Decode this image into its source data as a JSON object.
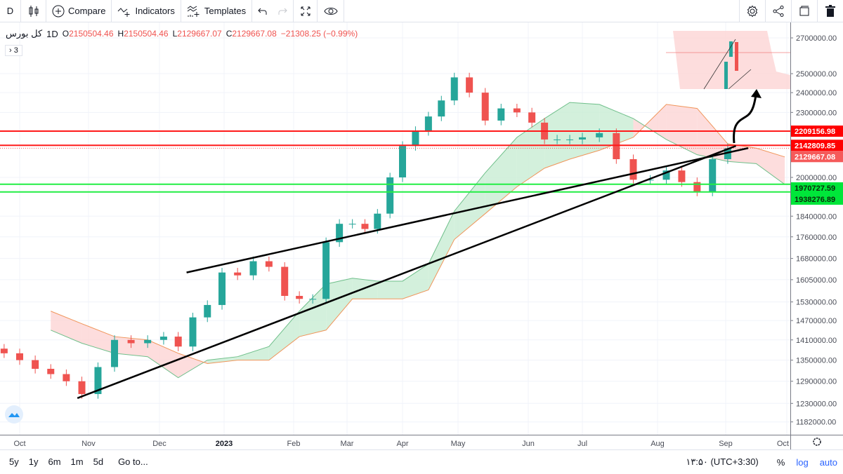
{
  "toolbar": {
    "interval": "D",
    "compare": "Compare",
    "indicators": "Indicators",
    "templates": "Templates",
    "icons": [
      "candles-icon",
      "plus-circle-icon",
      "indicators-icon",
      "templates-icon",
      "undo-icon",
      "redo-icon",
      "fullscreen-icon",
      "eye-icon",
      "gear-icon",
      "share-icon",
      "snapshot-icon",
      "trash-icon"
    ]
  },
  "legend": {
    "symbol": "کل بورس",
    "interval": "1D",
    "o_label": "O",
    "o": "2150504.46",
    "h_label": "H",
    "h": "2150504.46",
    "l_label": "L",
    "l": "2129667.07",
    "c_label": "C",
    "c": "2129667.08",
    "change": "−21308.25 (−0.99%)",
    "collapsed_count": "3"
  },
  "bottom": {
    "ranges": [
      "5y",
      "1y",
      "6m",
      "1m",
      "5d"
    ],
    "goto": "Go to...",
    "time": "۱۳:۵۰ (UTC+3:30)",
    "percent": "%",
    "log": "log",
    "auto": "auto"
  },
  "chart_data": {
    "type": "candlestick",
    "scale": "log",
    "ylim": [
      1160000,
      2780000
    ],
    "grid": true,
    "colors": {
      "up": "#26a69a",
      "down": "#ef5350",
      "resistance": "#ff1a1a",
      "support": "#22ee44",
      "span_a": "#6fbf8a",
      "span_b": "#f0955a",
      "cloud_bull": "#c8ecd3",
      "cloud_bear": "#fcd4d4"
    },
    "x_ticks": [
      "Oct",
      "Nov",
      "Dec",
      "2023",
      "Feb",
      "Mar",
      "Apr",
      "May",
      "Jun",
      "Jul",
      "Aug",
      "Sep",
      "Oct"
    ],
    "y_ticks": [
      2700000,
      2500000,
      2400000,
      2300000,
      2000000,
      1840000,
      1760000,
      1680000,
      1605000,
      1530000,
      1470000,
      1410000,
      1350000,
      1290000,
      1230000,
      1182000
    ],
    "candles": {
      "dates": [
        "2022-09-24",
        "2022-10-01",
        "2022-10-08",
        "2022-10-15",
        "2022-10-22",
        "2022-10-29",
        "2022-11-05",
        "2022-11-12",
        "2022-11-19",
        "2022-11-26",
        "2022-12-03",
        "2022-12-10",
        "2022-12-17",
        "2022-12-24",
        "2022-12-31",
        "2023-01-07",
        "2023-01-14",
        "2023-01-21",
        "2023-01-28",
        "2023-02-04",
        "2023-02-11",
        "2023-02-18",
        "2023-02-25",
        "2023-03-04",
        "2023-03-11",
        "2023-03-18",
        "2023-03-25",
        "2023-04-01",
        "2023-04-08",
        "2023-04-15",
        "2023-04-22",
        "2023-04-29",
        "2023-05-06",
        "2023-05-13",
        "2023-05-20",
        "2023-05-27",
        "2023-06-03",
        "2023-06-10",
        "2023-06-17",
        "2023-06-24",
        "2023-07-01",
        "2023-07-08",
        "2023-07-15",
        "2023-07-22",
        "2023-07-29",
        "2023-08-05",
        "2023-08-12",
        "2023-08-19",
        "2023-08-26",
        "2023-09-02"
      ],
      "close": [
        1370000,
        1350000,
        1325000,
        1310000,
        1290000,
        1255000,
        1330000,
        1410000,
        1400000,
        1410000,
        1420000,
        1390000,
        1480000,
        1520000,
        1630000,
        1620000,
        1670000,
        1650000,
        1550000,
        1540000,
        1540000,
        1740000,
        1810000,
        1810000,
        1790000,
        1850000,
        2000000,
        2140000,
        2210000,
        2280000,
        2360000,
        2480000,
        2400000,
        2260000,
        2320000,
        2300000,
        2250000,
        2170000,
        2170000,
        2170000,
        2180000,
        2200000,
        2080000,
        1990000,
        1990000,
        2030000,
        1980000,
        1940000,
        2080000,
        2129667
      ]
    },
    "ichimoku": {
      "dates": [
        "2022-10-15",
        "2022-10-29",
        "2022-11-12",
        "2022-11-26",
        "2022-12-10",
        "2022-12-24",
        "2023-01-07",
        "2023-01-21",
        "2023-02-04",
        "2023-02-18",
        "2023-03-04",
        "2023-03-18",
        "2023-04-01",
        "2023-04-15",
        "2023-04-29",
        "2023-05-13",
        "2023-05-27",
        "2023-06-10",
        "2023-06-24",
        "2023-07-08",
        "2023-07-22",
        "2023-08-05",
        "2023-08-19",
        "2023-09-02",
        "2023-09-16",
        "2023-09-30"
      ],
      "span_a": [
        1440000,
        1400000,
        1370000,
        1360000,
        1300000,
        1350000,
        1360000,
        1390000,
        1500000,
        1590000,
        1610000,
        1600000,
        1600000,
        1660000,
        1860000,
        2020000,
        2180000,
        2270000,
        2350000,
        2340000,
        2270000,
        2170000,
        2100000,
        2070000,
        2060000,
        1970000
      ],
      "span_b": [
        1500000,
        1460000,
        1420000,
        1410000,
        1370000,
        1340000,
        1350000,
        1350000,
        1420000,
        1440000,
        1540000,
        1540000,
        1540000,
        1570000,
        1750000,
        1850000,
        1960000,
        2040000,
        2080000,
        2120000,
        2180000,
        2340000,
        2320000,
        2150000,
        2130000,
        2090000
      ]
    },
    "levels": [
      {
        "price": 2209156.98,
        "label": "2209156.98",
        "kind": "resistance"
      },
      {
        "price": 2142809.85,
        "label": "2142809.85",
        "kind": "resistance"
      },
      {
        "price": 2129667.08,
        "label": "2129667.08",
        "kind": "last"
      },
      {
        "price": 1970727.59,
        "label": "1970727.59",
        "kind": "support"
      },
      {
        "price": 1938276.89,
        "label": "1938276.89",
        "kind": "support"
      }
    ],
    "trendlines": [
      {
        "from": [
          "2022-10-27",
          1244000
        ],
        "to": [
          "2023-09-06",
          2140000
        ]
      },
      {
        "from": [
          "2022-12-14",
          1630000
        ],
        "to": [
          "2023-09-12",
          2130000
        ]
      }
    ]
  }
}
